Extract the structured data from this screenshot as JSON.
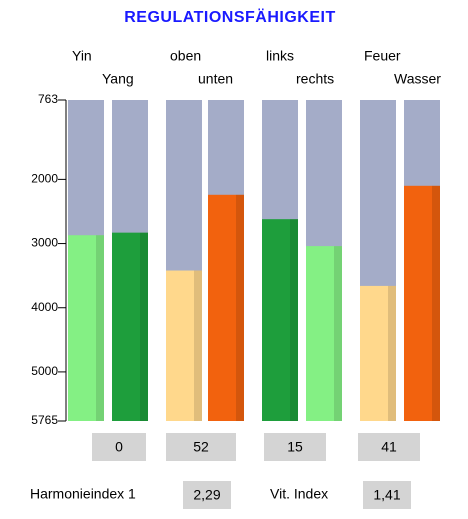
{
  "chart_data": {
    "type": "bar",
    "title": "REGULATIONSFÄHIGKEIT",
    "categories": [
      "Yin",
      "Yang",
      "oben",
      "unten",
      "links",
      "rechts",
      "Feuer",
      "Wasser"
    ],
    "values": [
      2870,
      2830,
      3420,
      2240,
      2620,
      3040,
      3660,
      2100
    ],
    "colors": [
      "#84f084",
      "#1e9e3c",
      "#ffd88c",
      "#f2620e",
      "#1e9e3c",
      "#84f084",
      "#ffd88c",
      "#f2620e"
    ],
    "ylim": [
      5765,
      763
    ],
    "yticks": [
      763,
      2000,
      3000,
      4000,
      5000,
      5765
    ],
    "group_values": [
      0,
      52,
      15,
      41
    ]
  },
  "footer": [
    {
      "label": "Harmonieindex 1",
      "value": "2,29"
    },
    {
      "label": "Vit. Index",
      "value": "1,41"
    }
  ]
}
